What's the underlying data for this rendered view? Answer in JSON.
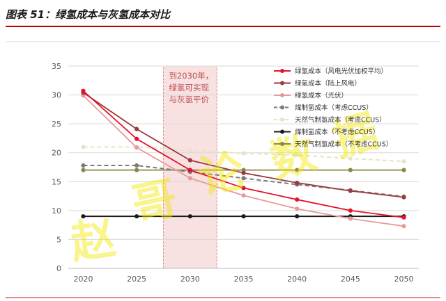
{
  "figure_title": "图表 51：绿氢成本与灰氢成本对比",
  "watermark": "赵 哥 论 数 据",
  "chart_data": {
    "type": "line",
    "x": [
      2020,
      2025,
      2030,
      2035,
      2040,
      2045,
      2050
    ],
    "ylim": [
      0,
      35
    ],
    "yticks": [
      0,
      5,
      10,
      15,
      20,
      25,
      30,
      35
    ],
    "xlabel": "",
    "ylabel": "",
    "grid": true,
    "legend_position": "top-right",
    "annotation": {
      "lines": [
        "到2030年，",
        "绿氢可实现",
        "与灰氢平价"
      ],
      "span": [
        2027.5,
        2032.5
      ]
    },
    "series": [
      {
        "name": "绿氢成本（风电光伏加权平均）",
        "color": "#e8102a",
        "dash": false,
        "values": [
          30.7,
          22.4,
          17.0,
          13.9,
          11.9,
          10.0,
          8.8
        ]
      },
      {
        "name": "绿氢成本（陆上风电）",
        "color": "#9a3a3a",
        "dash": false,
        "values": [
          30.4,
          24.1,
          18.7,
          16.5,
          14.8,
          13.4,
          12.3
        ]
      },
      {
        "name": "绿氢成本（光伏）",
        "color": "#e59a9a",
        "dash": false,
        "values": [
          29.9,
          20.9,
          15.6,
          12.6,
          10.3,
          8.6,
          7.3
        ]
      },
      {
        "name": "煤制氢成本（考虑CCUS）",
        "color": "#7a7a7a",
        "dash": true,
        "values": [
          17.8,
          17.8,
          16.7,
          15.6,
          14.5,
          13.5,
          12.4
        ]
      },
      {
        "name": "天然气制氢成本（考虑CCUS）",
        "color": "#e6e3c8",
        "dash": true,
        "values": [
          21.0,
          21.0,
          20.4,
          19.9,
          19.6,
          19.0,
          18.5
        ]
      },
      {
        "name": "煤制氢成本（不考虑CCUS）",
        "color": "#1a1a1a",
        "dash": false,
        "values": [
          9.0,
          9.0,
          9.0,
          9.0,
          9.0,
          9.0,
          9.0
        ]
      },
      {
        "name": "天然气制氢成本（不考虑CCUS）",
        "color": "#8b8648",
        "dash": false,
        "values": [
          17.0,
          17.0,
          17.0,
          17.0,
          17.0,
          17.0,
          17.0
        ]
      }
    ]
  }
}
